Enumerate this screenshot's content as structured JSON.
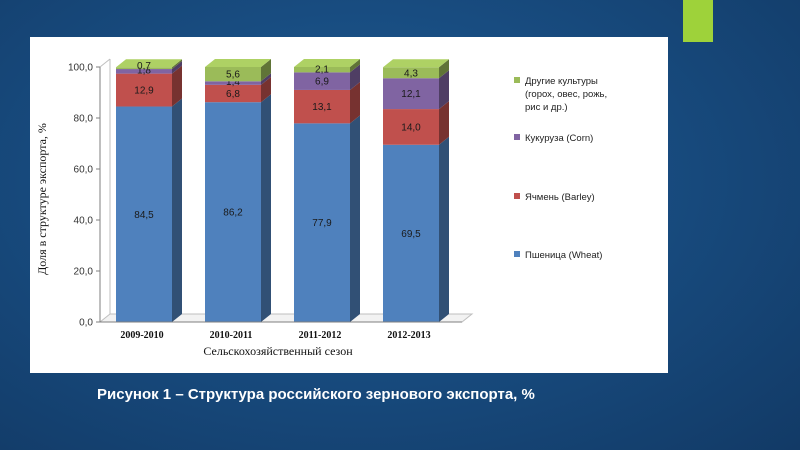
{
  "caption": "Рисунок 1 – Структура российского зернового экспорта, %",
  "chart_data": {
    "type": "bar",
    "stacked": true,
    "style": "3d-column",
    "categories": [
      "2009-2010",
      "2010-2011",
      "2011-2012",
      "2012-2013"
    ],
    "series": [
      {
        "name": "Пшеница (Wheat)",
        "color": "#4f81bd",
        "values": [
          84.5,
          86.2,
          77.9,
          69.5
        ],
        "labels": [
          "84,5",
          "86,2",
          "77,9",
          "69,5"
        ]
      },
      {
        "name": "Ячмень (Barley)",
        "color": "#c0504d",
        "values": [
          12.9,
          6.8,
          13.1,
          14.0
        ],
        "labels": [
          "12,9",
          "6,8",
          "13,1",
          "14,0"
        ]
      },
      {
        "name": "Кукуруза (Corn)",
        "color": "#8064a2",
        "values": [
          1.8,
          1.4,
          6.9,
          12.1
        ],
        "labels": [
          "1,8",
          "1,4",
          "6,9",
          "12,1"
        ]
      },
      {
        "name": "Другие культуры (горох, овес, рожь, рис и др.)",
        "legend_lines": [
          "Другие культуры",
          "(горох, овес, рожь,",
          "рис и др.)"
        ],
        "color": "#9bbb59",
        "values": [
          0.7,
          5.6,
          2.1,
          4.3
        ],
        "labels": [
          "0,7",
          "5,6",
          "2,1",
          "4,3"
        ]
      }
    ],
    "xlabel": "Сельскохозяйственный сезон",
    "ylabel": "Доля в структуре экспорта, %",
    "ylim": [
      0,
      100
    ],
    "yticks": [
      "0,0",
      "20,0",
      "40,0",
      "60,0",
      "80,0",
      "100,0"
    ],
    "grid": false,
    "legend_position": "right"
  }
}
